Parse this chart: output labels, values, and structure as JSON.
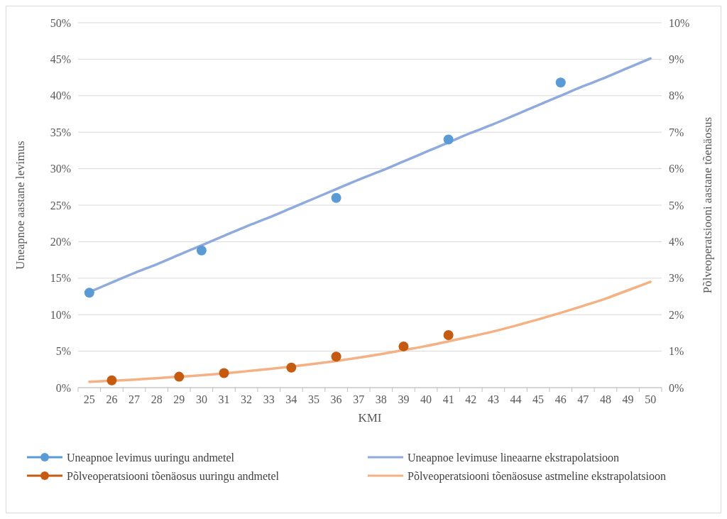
{
  "chart_data": {
    "type": "line",
    "xlabel": "KMI",
    "ylabel": "Uneapnoe aastane levimus",
    "y2label": "Põlveoperatsiooni aastane tõenäosus",
    "categories": [
      "25",
      "26",
      "27",
      "28",
      "29",
      "30",
      "31",
      "32",
      "33",
      "34",
      "35",
      "36",
      "37",
      "38",
      "39",
      "40",
      "41",
      "42",
      "43",
      "44",
      "45",
      "46",
      "47",
      "48",
      "49",
      "50"
    ],
    "ylim": [
      0,
      50
    ],
    "yticks": [
      {
        "value": 0,
        "label": "0%"
      },
      {
        "value": 5,
        "label": "5%"
      },
      {
        "value": 10,
        "label": "10%"
      },
      {
        "value": 15,
        "label": "15%"
      },
      {
        "value": 20,
        "label": "20%"
      },
      {
        "value": 25,
        "label": "25%"
      },
      {
        "value": 30,
        "label": "30%"
      },
      {
        "value": 35,
        "label": "35%"
      },
      {
        "value": 40,
        "label": "40%"
      },
      {
        "value": 45,
        "label": "45%"
      },
      {
        "value": 50,
        "label": "50%"
      }
    ],
    "y2lim": [
      0,
      10
    ],
    "y2ticks": [
      {
        "value": 0,
        "label": "0%"
      },
      {
        "value": 1,
        "label": "1%"
      },
      {
        "value": 2,
        "label": "2%"
      },
      {
        "value": 3,
        "label": "3%"
      },
      {
        "value": 4,
        "label": "4%"
      },
      {
        "value": 5,
        "label": "5%"
      },
      {
        "value": 6,
        "label": "6%"
      },
      {
        "value": 7,
        "label": "7%"
      },
      {
        "value": 8,
        "label": "8%"
      },
      {
        "value": 9,
        "label": "9%"
      },
      {
        "value": 10,
        "label": "10%"
      }
    ],
    "grid": "y",
    "legend": "bottom",
    "series": [
      {
        "name": "Uneapnoe levimus uuringu andmetel",
        "type": "scatter",
        "marker": "circle",
        "color": "#5b9bd5",
        "x": [
          "25",
          "30",
          "36",
          "41",
          "46"
        ],
        "values": [
          13.0,
          18.8,
          26.0,
          34.0,
          41.8
        ]
      },
      {
        "name": "Uneapnoe levimuse lineaarne ekstrapolatsioon",
        "marker": "none",
        "color": "#8faadc",
        "values": [
          13.1,
          14.4,
          15.7,
          16.9,
          18.2,
          19.5,
          20.8,
          22.1,
          23.3,
          24.6,
          25.9,
          27.2,
          28.5,
          29.7,
          31.0,
          32.3,
          33.6,
          34.9,
          36.1,
          37.4,
          38.7,
          40.0,
          41.3,
          42.5,
          43.8,
          45.1
        ]
      },
      {
        "name": "Põlveoperatsiooni tõenäosus uuringu andmetel",
        "type": "scatter",
        "marker": "circle",
        "color": "#c55a11",
        "axis": "y2",
        "x": [
          "26",
          "29",
          "31",
          "34",
          "36",
          "39",
          "41"
        ],
        "values": [
          0.2,
          0.3,
          0.4,
          0.55,
          0.85,
          1.13,
          1.44
        ]
      },
      {
        "name": "Põlveoperatsiooni tõenäosuse astmeline ekstrapolatsioon",
        "marker": "none",
        "color": "#f4b183",
        "axis": "y2",
        "values": [
          0.16,
          0.19,
          0.22,
          0.26,
          0.3,
          0.34,
          0.39,
          0.45,
          0.51,
          0.58,
          0.65,
          0.73,
          0.82,
          0.92,
          1.03,
          1.14,
          1.27,
          1.4,
          1.54,
          1.7,
          1.87,
          2.05,
          2.24,
          2.44,
          2.67,
          2.9
        ]
      }
    ]
  }
}
